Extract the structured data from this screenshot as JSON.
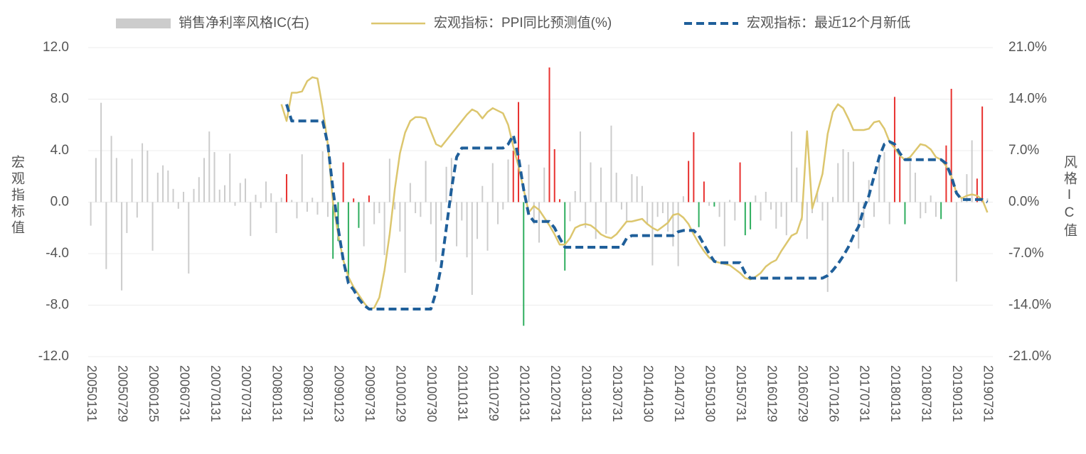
{
  "chart_data": {
    "type": "bar",
    "y_axis_label": "宏观指标值",
    "y2_axis_label": "风格IC值",
    "categories": [
      "20050131",
      null,
      null,
      null,
      null,
      null,
      "20050729",
      null,
      null,
      null,
      null,
      null,
      "20060125",
      null,
      null,
      null,
      null,
      null,
      "20060731",
      null,
      null,
      null,
      null,
      null,
      "20070131",
      null,
      null,
      null,
      null,
      null,
      "20070731",
      null,
      null,
      null,
      null,
      null,
      "20080131",
      null,
      null,
      null,
      null,
      null,
      "20080731",
      null,
      null,
      null,
      null,
      null,
      "20090123",
      null,
      null,
      null,
      null,
      null,
      "20090731",
      null,
      null,
      null,
      null,
      null,
      "20100129",
      null,
      null,
      null,
      null,
      null,
      "20100730",
      null,
      null,
      null,
      null,
      null,
      "20110131",
      null,
      null,
      null,
      null,
      null,
      "20110729",
      null,
      null,
      null,
      null,
      null,
      "20120131",
      null,
      null,
      null,
      null,
      null,
      "20120731",
      null,
      null,
      null,
      null,
      null,
      "20130131",
      null,
      null,
      null,
      null,
      null,
      "20130731",
      null,
      null,
      null,
      null,
      null,
      "20140130",
      null,
      null,
      null,
      null,
      null,
      "20140731",
      null,
      null,
      null,
      null,
      null,
      "20150130",
      null,
      null,
      null,
      null,
      null,
      "20150731",
      null,
      null,
      null,
      null,
      null,
      "20160129",
      null,
      null,
      null,
      null,
      null,
      "20160729",
      null,
      null,
      null,
      null,
      null,
      "20170126",
      null,
      null,
      null,
      null,
      null,
      "20170731",
      null,
      null,
      null,
      null,
      null,
      "20180131",
      null,
      null,
      null,
      null,
      null,
      "20180731",
      null,
      null,
      null,
      null,
      null,
      "20190131",
      null,
      null,
      null,
      null,
      null,
      "20190731"
    ],
    "ylim": [
      -12,
      12
    ],
    "yticks": [
      {
        "value": 12,
        "label": "12.0"
      },
      {
        "value": 8,
        "label": "8.0"
      },
      {
        "value": 4,
        "label": "4.0"
      },
      {
        "value": 0,
        "label": "0.0"
      },
      {
        "value": -4,
        "label": "-4.0"
      },
      {
        "value": -8,
        "label": "-8.0"
      },
      {
        "value": -12,
        "label": "-12.0"
      }
    ],
    "y2lim": [
      -21,
      21
    ],
    "y2ticks": [
      {
        "value": 21,
        "label": "21.0%"
      },
      {
        "value": 14,
        "label": "14.0%"
      },
      {
        "value": 7,
        "label": "7.0%"
      },
      {
        "value": 0,
        "label": "0.0%"
      },
      {
        "value": -7,
        "label": "-7.0%"
      },
      {
        "value": -14,
        "label": "-14.0%"
      },
      {
        "value": -21,
        "label": "-21.0%"
      }
    ],
    "grid": true,
    "legend": "top",
    "series": [
      {
        "name": "销售净利率风格IC(右)",
        "type": "bar",
        "axis": "y2",
        "color": "#cccccc",
        "values": [
          -3.2,
          6.0,
          13.5,
          -9.1,
          9.0,
          6.0,
          -12.0,
          -4.2,
          5.9,
          -2.1,
          8.0,
          7.0,
          -6.6,
          4.0,
          5.0,
          4.3,
          1.8,
          -0.9,
          1.4,
          -9.7,
          1.8,
          3.4,
          6.0,
          9.6,
          6.8,
          1.7,
          2.3,
          6.6,
          -0.5,
          2.6,
          3.2,
          -4.6,
          1.0,
          -0.8,
          2.8,
          1.2,
          -4.2,
          0.6,
          3.8,
          0.3,
          -2.2,
          6.5,
          -1.3,
          0.6,
          -1.7,
          6.9,
          -2.0,
          -7.7,
          -5.3,
          5.4,
          -10.5,
          0.5,
          -3.5,
          -6.0,
          0.9,
          -3.0,
          -1.5,
          -7.2,
          5.9,
          -1.0,
          -4.0,
          -9.6,
          2.6,
          -1.5,
          -2.0,
          5.6,
          -3.0,
          -8.1,
          -2.5,
          4.8,
          6.0,
          -6.0,
          -2.5,
          -7.5,
          -12.6,
          -5.0,
          2.2,
          -6.6,
          5.3,
          -3.0,
          -1.0,
          5.8,
          7.0,
          13.6,
          -16.8,
          5.1,
          -3.0,
          -5.5,
          4.7,
          18.3,
          7.2,
          0.4,
          -9.3,
          -2.6,
          1.5,
          9.6,
          -3.5,
          5.4,
          -5.0,
          4.7,
          -4.3,
          10.4,
          4.0,
          -1.0,
          -2.5,
          3.8,
          3.5,
          2.2,
          -3.0,
          -8.6,
          -2.0,
          -1.5,
          -4.0,
          -6.0,
          -8.7,
          0.8,
          5.6,
          9.5,
          -3.4,
          2.8,
          -0.5,
          -0.6,
          -2.0,
          -6.0,
          0.3,
          -2.5,
          5.4,
          -4.5,
          -3.7,
          0.9,
          -2.5,
          1.4,
          -1.0,
          -3.6,
          -2.0,
          -4.5,
          9.6,
          4.7,
          -2.5,
          -5.0,
          -1.5,
          1.5,
          -2.5,
          -12.2,
          0.7,
          5.3,
          7.2,
          6.8,
          5.5,
          -6.3,
          -3.5,
          3.0,
          -2.0,
          6.5,
          6.8,
          -3.0,
          14.3,
          6.5,
          -3.0,
          5.5,
          4.0,
          -2.2,
          -1.5,
          0.9,
          -2.0,
          -2.3,
          7.7,
          15.4,
          -10.8,
          0.6,
          3.8,
          8.4,
          3.2,
          13.0,
          0.5
        ],
        "colors": [
          "#ccc",
          "#ccc",
          "#ccc",
          "#ccc",
          "#ccc",
          "#ccc",
          "#ccc",
          "#ccc",
          "#ccc",
          "#ccc",
          "#ccc",
          "#ccc",
          "#ccc",
          "#ccc",
          "#ccc",
          "#ccc",
          "#ccc",
          "#ccc",
          "#ccc",
          "#ccc",
          "#ccc",
          "#ccc",
          "#ccc",
          "#ccc",
          "#ccc",
          "#ccc",
          "#ccc",
          "#ccc",
          "#ccc",
          "#ccc",
          "#ccc",
          "#ccc",
          "#ccc",
          "#ccc",
          "#ccc",
          "#ccc",
          "#ccc",
          "#ccc",
          "#e8312f",
          "#ccc",
          "#ccc",
          "#ccc",
          "#ccc",
          "#ccc",
          "#ccc",
          "#ccc",
          "#ccc",
          "#2fae5f",
          "#2fae5f",
          "#e8312f",
          "#2fae5f",
          "#e8312f",
          "#2fae5f",
          "#ccc",
          "#e8312f",
          "#ccc",
          "#ccc",
          "#ccc",
          "#ccc",
          "#ccc",
          "#ccc",
          "#ccc",
          "#ccc",
          "#ccc",
          "#ccc",
          "#ccc",
          "#ccc",
          "#ccc",
          "#ccc",
          "#ccc",
          "#ccc",
          "#ccc",
          "#ccc",
          "#ccc",
          "#ccc",
          "#ccc",
          "#ccc",
          "#ccc",
          "#ccc",
          "#ccc",
          "#ccc",
          "#ccc",
          "#e8312f",
          "#e8312f",
          "#2fae5f",
          "#ccc",
          "#ccc",
          "#ccc",
          "#ccc",
          "#e8312f",
          "#e8312f",
          "#e8312f",
          "#2fae5f",
          "#ccc",
          "#ccc",
          "#ccc",
          "#ccc",
          "#ccc",
          "#ccc",
          "#ccc",
          "#ccc",
          "#ccc",
          "#ccc",
          "#ccc",
          "#ccc",
          "#ccc",
          "#ccc",
          "#ccc",
          "#ccc",
          "#ccc",
          "#ccc",
          "#ccc",
          "#ccc",
          "#ccc",
          "#ccc",
          "#ccc",
          "#e8312f",
          "#e8312f",
          "#2fae5f",
          "#e8312f",
          "#ccc",
          "#2fae5f",
          "#ccc",
          "#ccc",
          "#ccc",
          "#ccc",
          "#e8312f",
          "#2fae5f",
          "#2fae5f",
          "#ccc",
          "#ccc",
          "#ccc",
          "#ccc",
          "#ccc",
          "#ccc",
          "#ccc",
          "#ccc",
          "#ccc",
          "#ccc",
          "#ccc",
          "#ccc",
          "#ccc",
          "#ccc",
          "#ccc",
          "#ccc",
          "#ccc",
          "#ccc",
          "#ccc",
          "#ccc",
          "#ccc",
          "#ccc",
          "#ccc",
          "#ccc",
          "#ccc",
          "#ccc",
          "#ccc",
          "#e8312f",
          "#e8312f",
          "#2fae5f",
          "#ccc",
          "#ccc",
          "#ccc",
          "#ccc",
          "#ccc",
          "#ccc",
          "#2fae5f",
          "#e8312f",
          "#e8312f",
          "#ccc",
          "#ccc",
          "#ccc",
          "#ccc",
          "#e8312f",
          "#e8312f",
          "#ccc"
        ]
      },
      {
        "name": "宏观指标：PPI同比预测值(%)",
        "type": "line",
        "color": "#dcc66e",
        "values": [
          null,
          null,
          null,
          null,
          null,
          null,
          null,
          null,
          null,
          null,
          null,
          null,
          null,
          null,
          null,
          null,
          null,
          null,
          null,
          null,
          null,
          null,
          null,
          null,
          null,
          null,
          null,
          null,
          null,
          null,
          null,
          null,
          null,
          null,
          null,
          null,
          null,
          7.6,
          6.3,
          8.5,
          8.5,
          8.6,
          9.4,
          9.7,
          9.6,
          7.3,
          4.5,
          0,
          -2.5,
          -4.5,
          -5.8,
          -6.6,
          -7.2,
          -7.8,
          -8.3,
          -8.2,
          -7.4,
          -5.3,
          -2.5,
          1.0,
          3.8,
          5.4,
          6.3,
          6.6,
          6.6,
          6.5,
          5.5,
          4.5,
          4.3,
          4.8,
          5.3,
          5.8,
          6.3,
          6.8,
          7.2,
          7.0,
          6.5,
          7.0,
          7.3,
          7.1,
          6.9,
          6.0,
          4.3,
          2.8,
          1.0,
          -0.8,
          -0.3,
          -0.6,
          -1.2,
          -1.8,
          -2.5,
          -3.3,
          -3.3,
          -2.8,
          -2.0,
          -1.8,
          -1.7,
          -1.8,
          -2.1,
          -2.5,
          -2.7,
          -2.8,
          -2.5,
          -2.0,
          -1.5,
          -1.5,
          -1.4,
          -1.3,
          -1.7,
          -2.0,
          -2.2,
          -1.9,
          -1.6,
          -1.0,
          -0.9,
          -1.2,
          -1.7,
          -2.5,
          -3.2,
          -3.8,
          -4.3,
          -4.6,
          -4.7,
          -4.8,
          -4.9,
          -5.2,
          -5.5,
          -5.9,
          -6.0,
          -5.8,
          -5.5,
          -5.0,
          -4.7,
          -4.5,
          -3.8,
          -3.2,
          -2.6,
          -2.4,
          -1.2,
          5.5,
          -0.5,
          0.8,
          2.2,
          5.3,
          7.0,
          7.6,
          7.3,
          6.5,
          5.6,
          5.6,
          5.6,
          5.7,
          6.2,
          6.3,
          5.7,
          4.7,
          4.2,
          3.6,
          3.3,
          3.5,
          4.0,
          4.5,
          4.4,
          4.1,
          3.5,
          3.3,
          2.8,
          2.0,
          0.7,
          0.3,
          0.5,
          0.6,
          0.5,
          0.2,
          -0.8
        ]
      },
      {
        "name": "宏观指标：最近12个月新低",
        "type": "line",
        "dashed": true,
        "color": "#1f5f9a",
        "values": [
          null,
          null,
          null,
          null,
          null,
          null,
          null,
          null,
          null,
          null,
          null,
          null,
          null,
          null,
          null,
          null,
          null,
          null,
          null,
          null,
          null,
          null,
          null,
          null,
          null,
          null,
          null,
          null,
          null,
          null,
          null,
          null,
          null,
          null,
          null,
          null,
          null,
          null,
          7.6,
          6.3,
          6.3,
          6.3,
          6.3,
          6.3,
          6.3,
          6.3,
          4.5,
          1.0,
          -2.0,
          -4.5,
          -6.3,
          -6.8,
          -7.5,
          -8.0,
          -8.3,
          -8.3,
          -8.3,
          -8.3,
          -8.3,
          -8.3,
          -8.3,
          -8.3,
          -8.3,
          -8.3,
          -8.3,
          -8.3,
          -8.3,
          -7.0,
          -5.0,
          -2.0,
          1.0,
          3.5,
          4.2,
          4.2,
          4.2,
          4.2,
          4.2,
          4.2,
          4.2,
          4.2,
          4.2,
          4.5,
          5.2,
          3.5,
          1.0,
          -1.0,
          -1.5,
          -1.5,
          -1.5,
          -1.5,
          -2.0,
          -2.8,
          -3.5,
          -3.5,
          -3.5,
          -3.5,
          -3.5,
          -3.5,
          -3.5,
          -3.5,
          -3.5,
          -3.5,
          -3.5,
          -3.5,
          -2.8,
          -2.6,
          -2.6,
          -2.6,
          -2.6,
          -2.6,
          -2.6,
          -2.6,
          -2.6,
          -2.6,
          -2.3,
          -2.2,
          -2.2,
          -2.2,
          -2.6,
          -3.3,
          -4.0,
          -4.6,
          -4.7,
          -4.7,
          -4.7,
          -4.7,
          -4.7,
          -5.5,
          -5.9,
          -5.9,
          -5.9,
          -5.9,
          -5.9,
          -5.9,
          -5.9,
          -5.9,
          -5.9,
          -5.9,
          -5.9,
          -5.9,
          -5.9,
          -5.9,
          -5.9,
          -5.7,
          -5.3,
          -4.8,
          -4.2,
          -3.5,
          -2.6,
          -1.9,
          -0.5,
          0.5,
          2.0,
          3.5,
          4.5,
          4.7,
          4.5,
          3.8,
          3.3,
          3.3,
          3.3,
          3.3,
          3.3,
          3.3,
          3.3,
          3.3,
          3.0,
          2.0,
          0.7,
          0.2,
          0.2,
          0.2,
          0.2,
          0.2,
          0
        ]
      }
    ]
  }
}
